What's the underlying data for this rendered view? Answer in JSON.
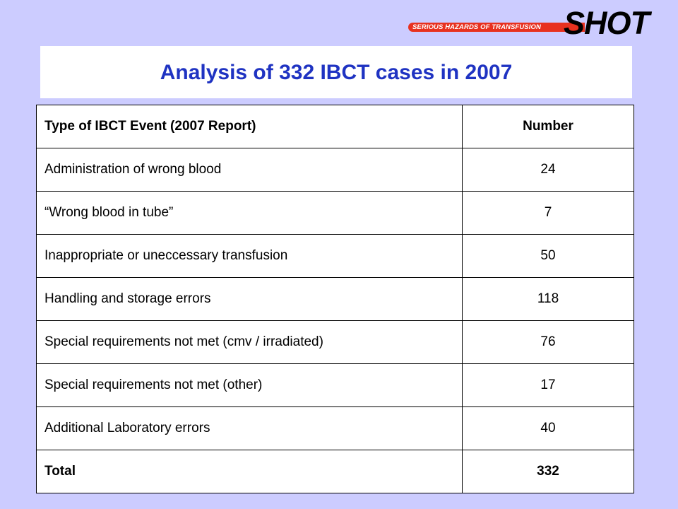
{
  "logo": {
    "tagline": "SERIOUS HAZARDS OF TRANSFUSION",
    "name": "SHOT",
    "bar_color": "#e8311f"
  },
  "title": "Analysis of 332 IBCT cases in 2007",
  "title_color": "#1f33c2",
  "background_color": "#ccccff",
  "table": {
    "header": {
      "type": "Type of IBCT Event (2007 Report)",
      "number": "Number"
    },
    "rows": [
      {
        "type": "Administration of wrong blood",
        "number": "24"
      },
      {
        "type": "“Wrong blood in tube”",
        "number": "7"
      },
      {
        "type": "Inappropriate or uneccessary transfusion",
        "number": "50"
      },
      {
        "type": "Handling and storage errors",
        "number": "118"
      },
      {
        "type": "Special requirements not met (cmv / irradiated)",
        "number": "76"
      },
      {
        "type": "Special requirements not met (other)",
        "number": "17"
      },
      {
        "type": "Additional Laboratory errors",
        "number": "40"
      }
    ],
    "total": {
      "type": "Total",
      "number": "332"
    }
  }
}
